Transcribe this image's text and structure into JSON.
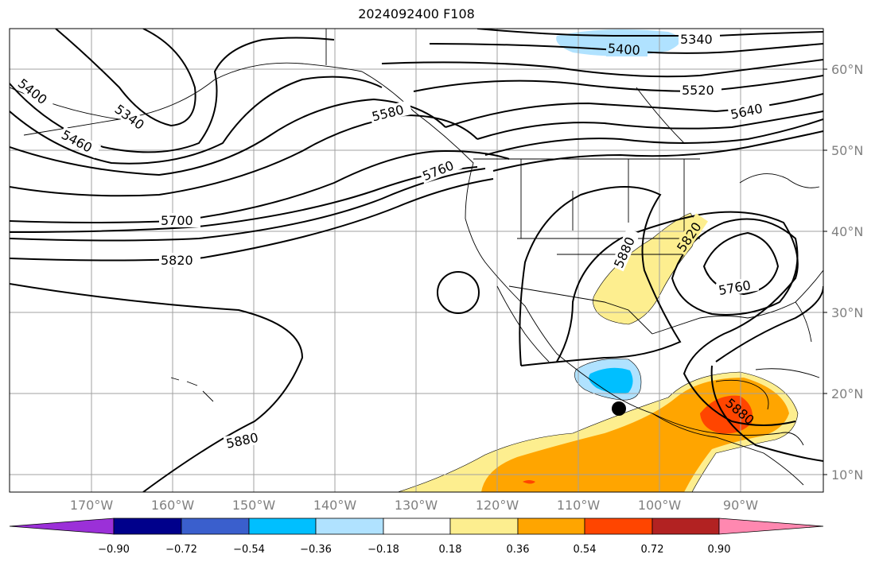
{
  "title": "2024092400 F108",
  "lat_labels": [
    "60°N",
    "50°N",
    "40°N",
    "30°N",
    "20°N",
    "10°N"
  ],
  "lon_labels": [
    "170°W",
    "160°W",
    "150°W",
    "140°W",
    "130°W",
    "120°W",
    "110°W",
    "100°W",
    "90°W"
  ],
  "colorbar": {
    "ticks": [
      "−0.90",
      "−0.72",
      "−0.54",
      "−0.36",
      "−0.18",
      "0.18",
      "0.36",
      "0.54",
      "0.72",
      "0.90"
    ],
    "colors": [
      "#9b30d8",
      "#00008b",
      "#3a5fcd",
      "#00bfff",
      "#b0e2ff",
      "#ffffff",
      "#fdee8f",
      "#ffa500",
      "#ff4500",
      "#b22222",
      "#ff88b0"
    ]
  },
  "contour_labels": [
    "5340",
    "5400",
    "5460",
    "5520",
    "5580",
    "5640",
    "5700",
    "5760",
    "5820",
    "5880"
  ],
  "map": {
    "contour_interval": 60,
    "marker": "tropical-cyclone-position-dot",
    "gridlines": true
  }
}
